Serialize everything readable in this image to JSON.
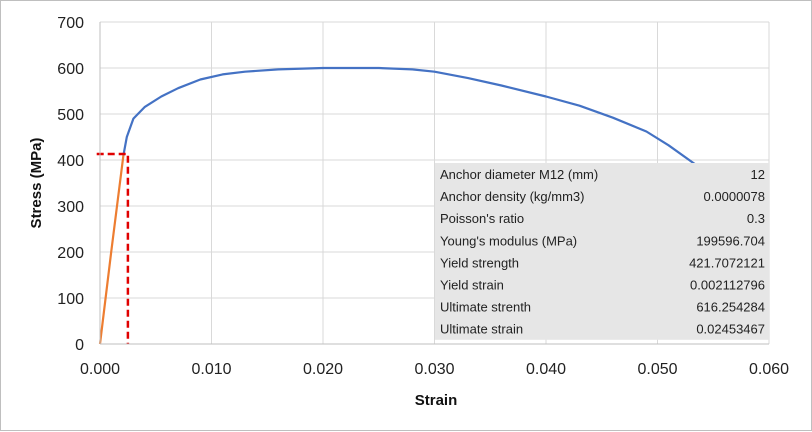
{
  "chart_data": {
    "type": "line",
    "xlabel": "Strain",
    "ylabel": "Stress (MPa)",
    "xlim": [
      0,
      0.06
    ],
    "ylim": [
      0,
      700
    ],
    "x_ticks": [
      "0.000",
      "0.010",
      "0.020",
      "0.030",
      "0.040",
      "0.050",
      "0.060"
    ],
    "y_ticks": [
      "0",
      "100",
      "200",
      "300",
      "400",
      "500",
      "600",
      "700"
    ],
    "grid": "vertical and horizontal",
    "series": [
      {
        "color": "#4472c4",
        "points": [
          [
            0.0021,
            410
          ],
          [
            0.0024,
            450
          ],
          [
            0.003,
            490
          ],
          [
            0.004,
            515
          ],
          [
            0.0055,
            538
          ],
          [
            0.007,
            556
          ],
          [
            0.009,
            575
          ],
          [
            0.011,
            586
          ],
          [
            0.013,
            592
          ],
          [
            0.016,
            597
          ],
          [
            0.02,
            600
          ],
          [
            0.025,
            600
          ],
          [
            0.028,
            597
          ],
          [
            0.03,
            592
          ],
          [
            0.033,
            578
          ],
          [
            0.036,
            562
          ],
          [
            0.04,
            538
          ],
          [
            0.043,
            518
          ],
          [
            0.046,
            492
          ],
          [
            0.049,
            462
          ],
          [
            0.051,
            432
          ],
          [
            0.0537,
            385
          ]
        ]
      },
      {
        "color": "#ed7d31",
        "points": [
          [
            0.0,
            0
          ],
          [
            0.001,
            200
          ],
          [
            0.0021,
            410
          ]
        ]
      },
      {
        "color": "#e00000",
        "dashed": true,
        "points": [
          [
            -0.0003,
            413
          ],
          [
            0.0025,
            413
          ],
          [
            0.0025,
            0
          ]
        ]
      }
    ],
    "table": {
      "background": "#e6e6e6",
      "rows": [
        {
          "label": "Anchor diameter M12 (mm)",
          "value": "12"
        },
        {
          "label": "Anchor density (kg/mm3)",
          "value": "0.0000078"
        },
        {
          "label": "Poisson's ratio",
          "value": "0.3"
        },
        {
          "label": "Young's modulus (MPa)",
          "value": "199596.704"
        },
        {
          "label": "Yield strength",
          "value": "421.7072121"
        },
        {
          "label": "Yield strain",
          "value": "0.002112796"
        },
        {
          "label": "Ultimate strenth",
          "value": "616.254284"
        },
        {
          "label": "Ultimate strain",
          "value": "0.02453467"
        }
      ]
    }
  }
}
